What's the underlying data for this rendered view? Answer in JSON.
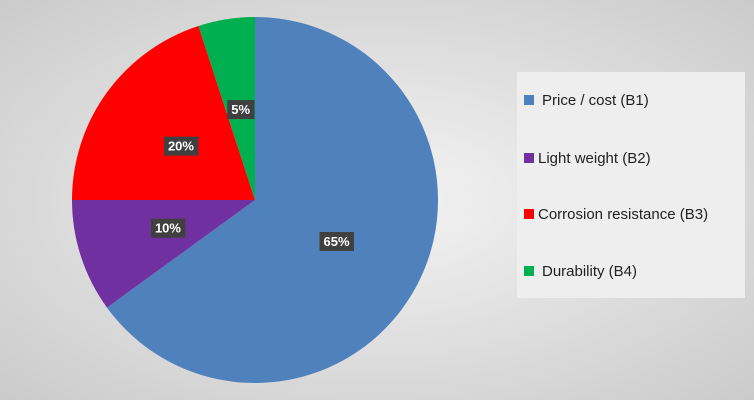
{
  "chart_data": {
    "type": "pie",
    "categories": [
      "Price / cost (B1)",
      "Light weight (B2)",
      "Corrosion resistance (B3)",
      "Durability (B4)"
    ],
    "values": [
      65,
      10,
      20,
      5
    ],
    "value_labels": [
      "65%",
      "10%",
      "20%",
      "5%"
    ],
    "colors": [
      "#4f81bd",
      "#7030a0",
      "#ff0000",
      "#00b050"
    ],
    "legend": "right"
  }
}
